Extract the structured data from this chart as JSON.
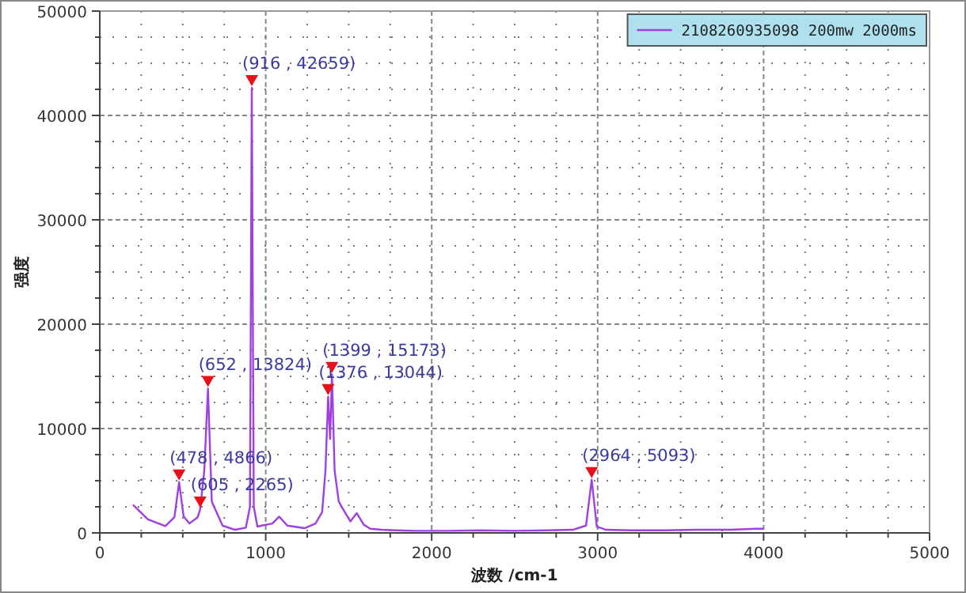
{
  "chart_data": {
    "type": "line",
    "xlabel": "波数 /cm-1",
    "ylabel": "强度",
    "xlim": [
      0,
      5000
    ],
    "ylim": [
      0,
      50000
    ],
    "xticks": [
      0,
      1000,
      2000,
      3000,
      4000,
      5000
    ],
    "yticks": [
      0,
      10000,
      20000,
      30000,
      40000,
      50000
    ],
    "grid": true,
    "legend": "top right",
    "marker": "none",
    "line_style": "solid",
    "series": [
      {
        "name": "2108260935098 200mw 2000ms",
        "color": "#a040e0",
        "x": [
          200,
          290,
          395,
          450,
          478,
          505,
          540,
          590,
          605,
          630,
          652,
          675,
          740,
          815,
          880,
          905,
          916,
          928,
          950,
          975,
          1040,
          1081,
          1130,
          1234,
          1300,
          1340,
          1360,
          1376,
          1388,
          1399,
          1415,
          1440,
          1465,
          1510,
          1548,
          1590,
          1630,
          1700,
          1780,
          1900,
          2100,
          2300,
          2500,
          2700,
          2850,
          2930,
          2964,
          2995,
          3050,
          3200,
          3400,
          3600,
          3800,
          3950,
          4000
        ],
        "values": [
          2700,
          1300,
          650,
          1500,
          4866,
          1600,
          900,
          1500,
          2265,
          6000,
          13824,
          3000,
          700,
          300,
          500,
          2500,
          42659,
          2500,
          600,
          700,
          900,
          1560,
          700,
          450,
          900,
          2000,
          6000,
          13044,
          9000,
          15173,
          6000,
          3000,
          2300,
          1100,
          1900,
          800,
          400,
          300,
          250,
          200,
          200,
          250,
          200,
          250,
          300,
          700,
          5093,
          600,
          300,
          250,
          250,
          300,
          300,
          400,
          400
        ]
      }
    ],
    "annotations": [
      {
        "text": "(478 , 4866)",
        "x": 478,
        "y": 4866
      },
      {
        "text": "(605 , 2265)",
        "x": 605,
        "y": 2265
      },
      {
        "text": "(652 , 13824)",
        "x": 652,
        "y": 13824
      },
      {
        "text": "(916 , 42659)",
        "x": 916,
        "y": 42659
      },
      {
        "text": "(1376 , 13044)",
        "x": 1376,
        "y": 13044
      },
      {
        "text": "(1399 , 15173)",
        "x": 1399,
        "y": 15173
      },
      {
        "text": "(2964 , 5093)",
        "x": 2964,
        "y": 5093
      }
    ]
  }
}
